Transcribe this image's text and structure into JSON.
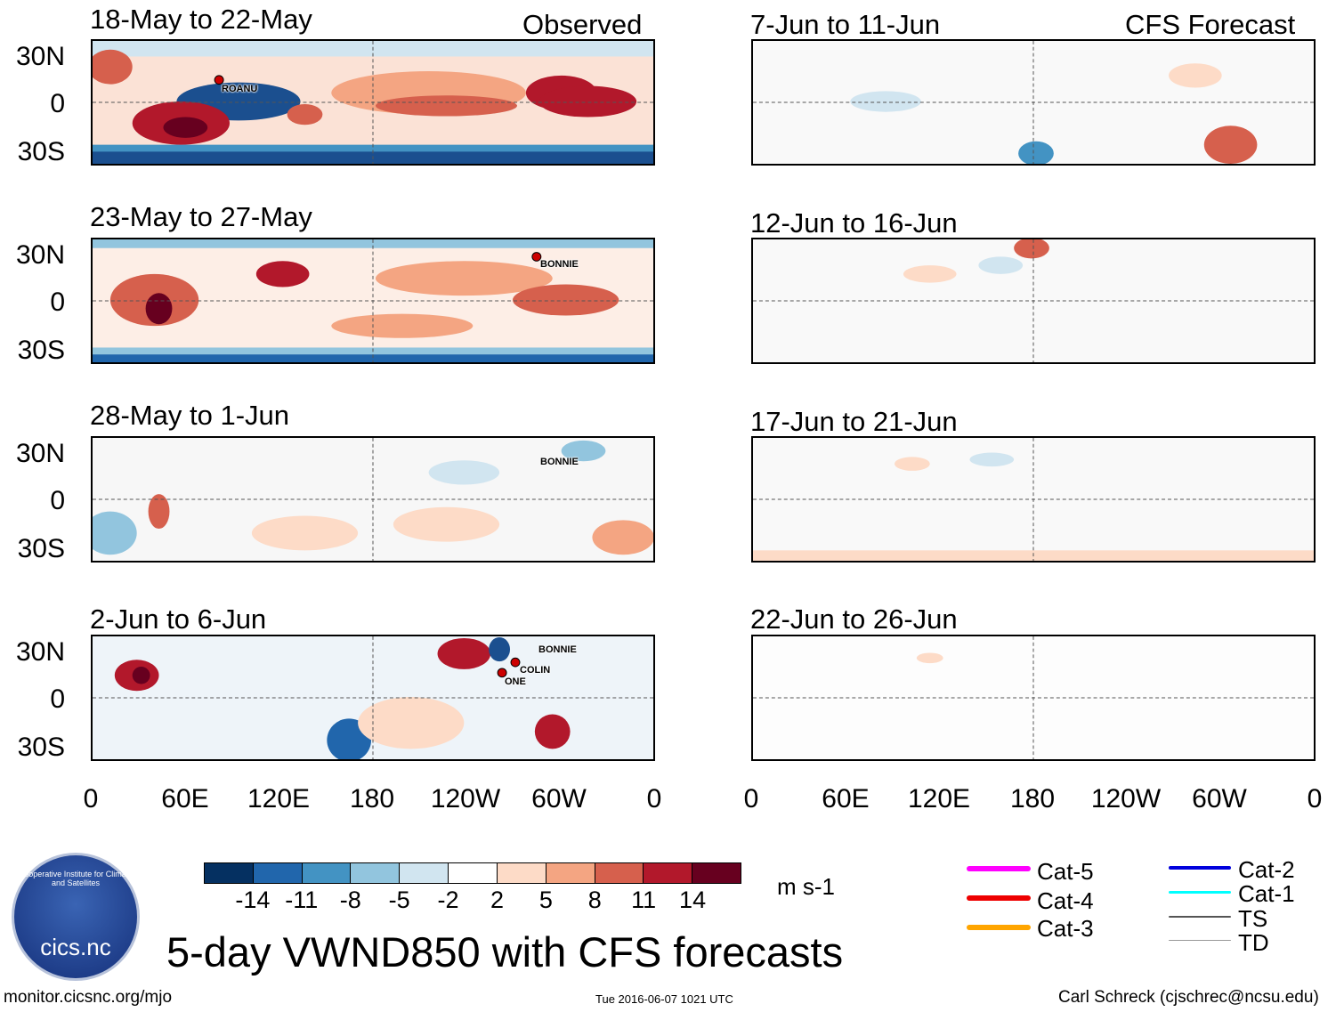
{
  "panels_observed": [
    {
      "title": "18-May to 22-May",
      "tag": "Observed",
      "storms": [
        {
          "name": "ROANU"
        }
      ]
    },
    {
      "title": "23-May to 27-May",
      "tag": "",
      "storms": [
        {
          "name": "BONNIE"
        }
      ]
    },
    {
      "title": "28-May to 1-Jun",
      "tag": "",
      "storms": [
        {
          "name": "BONNIE"
        }
      ]
    },
    {
      "title": "2-Jun to 6-Jun",
      "tag": "",
      "storms": [
        {
          "name": "BONNIE"
        },
        {
          "name": "COLIN"
        },
        {
          "name": "ONE"
        }
      ]
    }
  ],
  "panels_forecast": [
    {
      "title": "7-Jun to 11-Jun",
      "tag": "CFS Forecast"
    },
    {
      "title": "12-Jun to 16-Jun",
      "tag": ""
    },
    {
      "title": "17-Jun to 21-Jun",
      "tag": ""
    },
    {
      "title": "22-Jun to 26-Jun",
      "tag": ""
    }
  ],
  "y_labels": [
    "30N",
    "0",
    "30S"
  ],
  "x_labels": [
    "0",
    "60E",
    "120E",
    "180",
    "120W",
    "60W",
    "0"
  ],
  "colorbar": {
    "colors": [
      "#053061",
      "#2166ac",
      "#4393c3",
      "#92c5de",
      "#d1e5f0",
      "#ffffff",
      "#fddbc7",
      "#f4a582",
      "#d6604d",
      "#b2182b",
      "#67001f"
    ],
    "labels": [
      "-14",
      "-11",
      "-8",
      "-5",
      "-2",
      "2",
      "5",
      "8",
      "11",
      "14"
    ],
    "units": "m s-1"
  },
  "legend": [
    {
      "label": "Cat-5",
      "color": "#ff00ff"
    },
    {
      "label": "Cat-4",
      "color": "#ee0000"
    },
    {
      "label": "Cat-3",
      "color": "#ffa500"
    },
    {
      "label": "Cat-2",
      "color": "#0000dd"
    },
    {
      "label": "Cat-1",
      "color": "#00ffff"
    },
    {
      "label": "TS",
      "color": "#555555"
    },
    {
      "label": "TD",
      "color": "#999999"
    }
  ],
  "logo": {
    "ring_text": "Cooperative Institute for Climate and Satellites",
    "name": "cics.nc"
  },
  "main_title": "5-day VWND850 with CFS forecasts",
  "footer": {
    "left": "monitor.cicsnc.org/mjo",
    "center": "Tue 2016-06-07 1021 UTC",
    "right": "Carl Schreck (cjschrec@ncsu.edu)"
  }
}
